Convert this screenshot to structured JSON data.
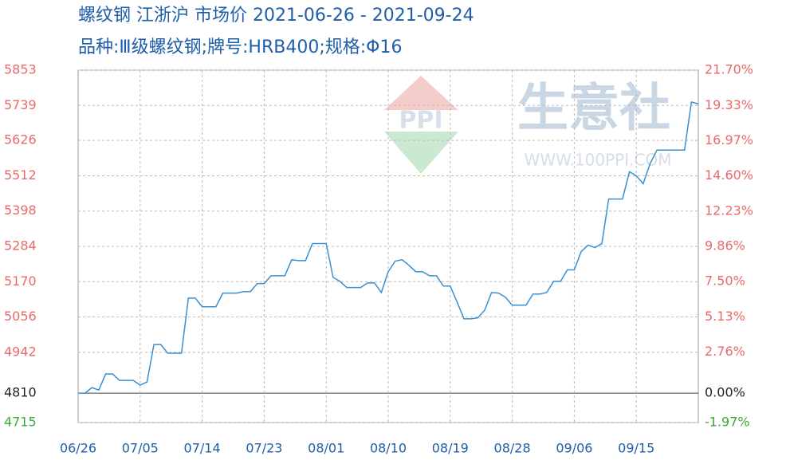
{
  "chart_data": {
    "type": "line",
    "title": "螺纹钢 江浙沪 市场价 2021-06-26 - 2021-09-24",
    "subtitle": "品种:Ⅲ级螺纹钢;牌号:HRB400;规格:Φ16",
    "watermark": "生意社",
    "watermark_url": "WWW.100PPI.COM",
    "categories": [
      "06/26",
      null,
      null,
      null,
      null,
      null,
      null,
      null,
      null,
      "07/05",
      null,
      null,
      null,
      null,
      null,
      null,
      null,
      null,
      "07/14",
      null,
      null,
      null,
      null,
      null,
      null,
      null,
      null,
      "07/23",
      null,
      null,
      null,
      null,
      null,
      null,
      null,
      null,
      "08/01",
      null,
      null,
      null,
      null,
      null,
      null,
      null,
      null,
      "08/10",
      null,
      null,
      null,
      null,
      null,
      null,
      null,
      null,
      "08/19",
      null,
      null,
      null,
      null,
      null,
      null,
      null,
      null,
      "08/28",
      null,
      null,
      null,
      null,
      null,
      null,
      null,
      null,
      "09/06",
      null,
      null,
      null,
      null,
      null,
      null,
      null,
      null,
      "09/15",
      null,
      null,
      null,
      null,
      null,
      null,
      null,
      null,
      null
    ],
    "series": [
      {
        "color": "#3a8fd0",
        "values": [
          4810,
          4810,
          4828,
          4820,
          4872,
          4872,
          4851,
          4851,
          4851,
          4836,
          4846,
          4967,
          4967,
          4939,
          4939,
          4939,
          5117,
          5117,
          5089,
          5089,
          5089,
          5133,
          5133,
          5133,
          5138,
          5138,
          5164,
          5164,
          5189,
          5189,
          5189,
          5241,
          5238,
          5238,
          5293,
          5293,
          5293,
          5184,
          5171,
          5151,
          5151,
          5151,
          5166,
          5166,
          5135,
          5202,
          5236,
          5241,
          5223,
          5202,
          5202,
          5189,
          5189,
          5156,
          5156,
          5104,
          5050,
          5050,
          5053,
          5078,
          5135,
          5133,
          5120,
          5094,
          5094,
          5094,
          5130,
          5130,
          5135,
          5171,
          5171,
          5208,
          5208,
          5267,
          5288,
          5280,
          5293,
          5437,
          5437,
          5437,
          5525,
          5512,
          5486,
          5551,
          5595,
          5595,
          5595,
          5595,
          5595,
          5750,
          5744
        ]
      }
    ],
    "ylim": [
      4715,
      5853
    ],
    "yticks": [
      4715,
      4810,
      4942,
      5056,
      5170,
      5284,
      5398,
      5512,
      5626,
      5739,
      5853
    ],
    "y2lim": [
      -1.97,
      21.7
    ],
    "y2ticks": [
      {
        "value": -1.97,
        "label": "-1.97%"
      },
      {
        "value": 0,
        "label": "0.00%"
      },
      {
        "value": 2.76,
        "label": "2.76%"
      },
      {
        "value": 5.13,
        "label": "5.13%"
      },
      {
        "value": 7.5,
        "label": "7.50%"
      },
      {
        "value": 9.86,
        "label": "9.86%"
      },
      {
        "value": 12.23,
        "label": "12.23%"
      },
      {
        "value": 14.6,
        "label": "14.60%"
      },
      {
        "value": 16.97,
        "label": "16.97%"
      },
      {
        "value": 19.33,
        "label": "19.33%"
      },
      {
        "value": 21.7,
        "label": "21.70%"
      }
    ],
    "grid": true
  }
}
